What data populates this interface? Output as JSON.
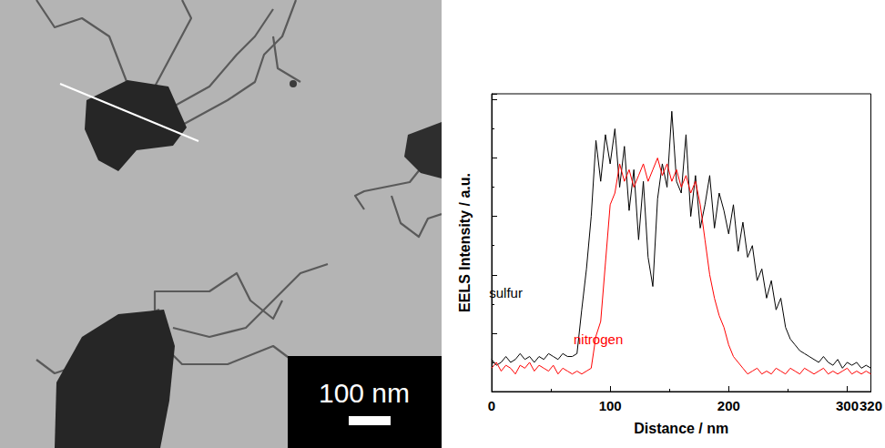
{
  "image": {
    "scale_bar": "100 nm"
  },
  "chart_data": {
    "type": "line",
    "xlabel": "Distance / nm",
    "ylabel": "EELS Intensity / a.u.",
    "xlim": [
      0,
      320
    ],
    "xticks": [
      0,
      100,
      200,
      300
    ],
    "ylim": [
      0,
      5.1
    ],
    "yticks": [
      0,
      1,
      2,
      3,
      4,
      5
    ],
    "tick_labels": "x",
    "grid": false,
    "x": [
      0,
      4,
      8,
      12,
      16,
      20,
      24,
      28,
      32,
      36,
      40,
      44,
      48,
      52,
      56,
      60,
      64,
      68,
      72,
      76,
      80,
      84,
      88,
      92,
      96,
      100,
      104,
      108,
      112,
      116,
      120,
      124,
      128,
      132,
      136,
      140,
      144,
      148,
      152,
      156,
      160,
      164,
      168,
      172,
      176,
      180,
      184,
      188,
      192,
      196,
      200,
      204,
      208,
      212,
      216,
      220,
      224,
      228,
      232,
      236,
      240,
      244,
      248,
      252,
      256,
      260,
      264,
      268,
      272,
      276,
      280,
      284,
      288,
      292,
      296,
      300,
      304,
      308,
      312,
      316,
      320
    ],
    "series": [
      {
        "name": "sulfur",
        "color": "#000000",
        "values": [
          0.55,
          0.45,
          0.5,
          0.6,
          0.5,
          0.55,
          0.65,
          0.55,
          0.6,
          0.5,
          0.6,
          0.55,
          0.65,
          0.6,
          0.55,
          0.65,
          0.6,
          0.6,
          0.65,
          1.4,
          2.1,
          3.0,
          4.3,
          3.6,
          4.4,
          3.9,
          4.5,
          3.5,
          4.2,
          3.1,
          3.8,
          2.6,
          3.6,
          2.3,
          1.8,
          3.3,
          3.9,
          3.5,
          4.8,
          3.6,
          3.4,
          4.4,
          3.0,
          3.7,
          2.8,
          3.2,
          3.7,
          2.8,
          3.4,
          3.1,
          2.7,
          3.2,
          2.4,
          2.9,
          2.3,
          2.5,
          1.9,
          2.1,
          1.6,
          1.9,
          1.4,
          1.6,
          1.1,
          0.9,
          0.8,
          0.7,
          0.65,
          0.6,
          0.55,
          0.5,
          0.6,
          0.5,
          0.45,
          0.55,
          0.4,
          0.5,
          0.45,
          0.5,
          0.4,
          0.45,
          0.4
        ]
      },
      {
        "name": "nitrogen",
        "color": "#ff0000",
        "values": [
          0.4,
          0.5,
          0.35,
          0.45,
          0.4,
          0.3,
          0.45,
          0.4,
          0.5,
          0.35,
          0.45,
          0.4,
          0.35,
          0.45,
          0.3,
          0.4,
          0.35,
          0.3,
          0.35,
          0.3,
          0.35,
          0.4,
          0.95,
          1.2,
          2.2,
          3.2,
          3.4,
          3.9,
          3.6,
          3.8,
          3.5,
          3.7,
          3.9,
          3.6,
          3.8,
          4.0,
          3.7,
          3.9,
          3.6,
          3.8,
          3.5,
          3.7,
          3.4,
          3.6,
          3.2,
          2.6,
          2.0,
          1.6,
          1.3,
          1.1,
          0.8,
          0.6,
          0.5,
          0.4,
          0.3,
          0.35,
          0.4,
          0.3,
          0.35,
          0.3,
          0.4,
          0.35,
          0.3,
          0.4,
          0.35,
          0.3,
          0.4,
          0.35,
          0.3,
          0.35,
          0.4,
          0.3,
          0.35,
          0.3,
          0.35,
          0.4,
          0.3,
          0.35,
          0.3,
          0.35,
          0.3
        ]
      }
    ],
    "annotations": [
      {
        "text": "sulfur",
        "x": 12,
        "y": 1.7,
        "color": "#000000"
      },
      {
        "text": "nitrogen",
        "x": 90,
        "y": 0.9,
        "color": "#ff0000"
      }
    ]
  }
}
